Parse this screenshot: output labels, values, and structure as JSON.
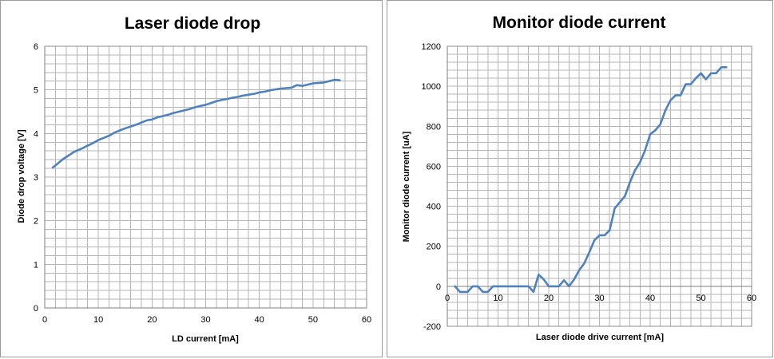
{
  "chart_data": [
    {
      "type": "line",
      "title": "Laser diode drop",
      "xlabel": "LD current [mA]",
      "ylabel": "Diode drop voltage [V]",
      "xlim": [
        0,
        60
      ],
      "ylim": [
        0,
        6
      ],
      "x_ticks": [
        "0",
        "10",
        "20",
        "30",
        "40",
        "50",
        "60"
      ],
      "y_ticks": [
        "0",
        "1",
        "2",
        "3",
        "4",
        "5",
        "6"
      ],
      "grid": true,
      "line_color": "#4F81BD",
      "series": [
        {
          "x": [
            1.5,
            2.5,
            3.5,
            4.5,
            5.5,
            7,
            8,
            9,
            10,
            11,
            12,
            13,
            14,
            15,
            16,
            17,
            18,
            19,
            20,
            21,
            22,
            23,
            24,
            25,
            26,
            27,
            28,
            29,
            30,
            31,
            32,
            33,
            34,
            35,
            36,
            37,
            38,
            39,
            40,
            41,
            42,
            43,
            44,
            45,
            46,
            47,
            48,
            49,
            50,
            51,
            52,
            53,
            54,
            55
          ],
          "y": [
            3.22,
            3.32,
            3.42,
            3.5,
            3.58,
            3.66,
            3.72,
            3.78,
            3.85,
            3.9,
            3.95,
            4.02,
            4.07,
            4.12,
            4.16,
            4.2,
            4.25,
            4.3,
            4.32,
            4.37,
            4.4,
            4.43,
            4.47,
            4.5,
            4.53,
            4.56,
            4.6,
            4.63,
            4.66,
            4.7,
            4.74,
            4.77,
            4.79,
            4.82,
            4.84,
            4.87,
            4.89,
            4.91,
            4.94,
            4.96,
            4.99,
            5.01,
            5.03,
            5.04,
            5.05,
            5.11,
            5.09,
            5.12,
            5.15,
            5.16,
            5.17,
            5.2,
            5.23,
            5.22
          ]
        }
      ]
    },
    {
      "type": "line",
      "title": "Monitor diode current",
      "xlabel": "Laser diode drive current [mA]",
      "ylabel": "Monitor diode current [uA]",
      "xlim": [
        0,
        60
      ],
      "ylim": [
        -200,
        1200
      ],
      "x_ticks": [
        "0",
        "10",
        "20",
        "30",
        "40",
        "50",
        "60"
      ],
      "y_ticks": [
        "-200",
        "0",
        "200",
        "400",
        "600",
        "800",
        "1000",
        "1200"
      ],
      "grid": true,
      "line_color": "#4F81BD",
      "series": [
        {
          "x": [
            1.5,
            2.5,
            4,
            5,
            6,
            7,
            8,
            9,
            10,
            12,
            14,
            15,
            16,
            17,
            18,
            19,
            20,
            21,
            22,
            23,
            24,
            25,
            26,
            27,
            28,
            29,
            30,
            31,
            32,
            33,
            34,
            35,
            36,
            37,
            38,
            39,
            40,
            41,
            42,
            43,
            44,
            45,
            46,
            47,
            48,
            49,
            50,
            51,
            52,
            53,
            54,
            55
          ],
          "y": [
            0,
            -28,
            -28,
            0,
            0,
            -28,
            -28,
            0,
            0,
            0,
            0,
            0,
            0,
            -28,
            58,
            35,
            0,
            0,
            0,
            30,
            0,
            35,
            80,
            115,
            170,
            230,
            255,
            255,
            280,
            390,
            420,
            450,
            520,
            580,
            620,
            680,
            760,
            780,
            810,
            880,
            930,
            955,
            955,
            1010,
            1010,
            1040,
            1065,
            1035,
            1065,
            1065,
            1095,
            1095
          ]
        }
      ]
    }
  ]
}
